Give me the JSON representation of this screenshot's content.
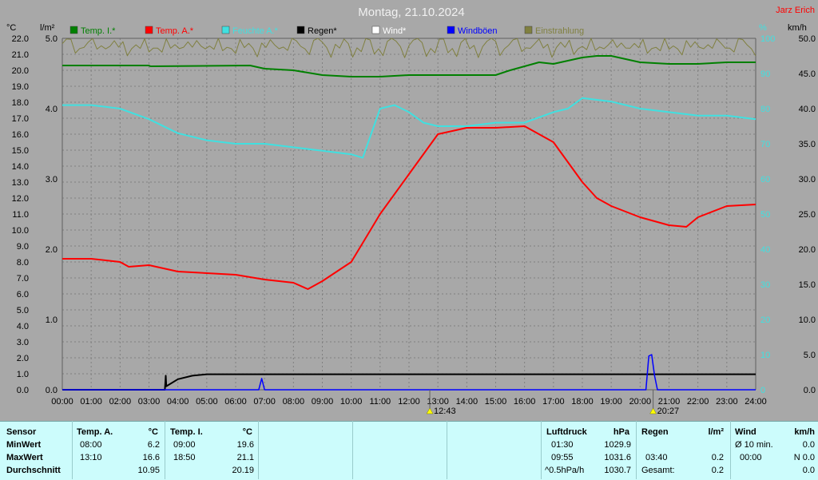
{
  "header": {
    "title": "Montag, 21.10.2024",
    "brand": "Jarz Erich",
    "unit_left_temp": "°C",
    "unit_left_rain": "l/m²",
    "unit_right_pct": "%",
    "unit_right_kmh": "km/h"
  },
  "legend": [
    {
      "label": "Temp. I.*",
      "color": "#008000"
    },
    {
      "label": "Temp. A.*",
      "color": "#ff0000"
    },
    {
      "label": "Feuchte A.*",
      "color": "#40e0e0"
    },
    {
      "label": "Regen*",
      "color": "#000000"
    },
    {
      "label": "Wind*",
      "color": "#ffffff"
    },
    {
      "label": "Windböen",
      "color": "#0000ff"
    },
    {
      "label": "Einstrahlung",
      "color": "#808040"
    }
  ],
  "chart_data": {
    "type": "line",
    "title": "Montag, 21.10.2024",
    "x_ticks": [
      "00:00",
      "01:00",
      "02:00",
      "03:00",
      "04:00",
      "05:00",
      "06:00",
      "07:00",
      "08:00",
      "09:00",
      "10:00",
      "11:00",
      "12:00",
      "13:00",
      "14:00",
      "15:00",
      "16:00",
      "17:00",
      "18:00",
      "19:00",
      "20:00",
      "21:00",
      "22:00",
      "23:00",
      "24:00"
    ],
    "temp_axis": {
      "min": 0.0,
      "max": 22.0,
      "ticks": [
        "0.0",
        "1.0",
        "2.0",
        "3.0",
        "4.0",
        "5.0",
        "6.0",
        "7.0",
        "8.0",
        "9.0",
        "10.0",
        "11.0",
        "12.0",
        "13.0",
        "14.0",
        "15.0",
        "16.0",
        "17.0",
        "18.0",
        "19.0",
        "20.0",
        "21.0",
        "22.0"
      ]
    },
    "rain_axis": {
      "min": 0.0,
      "max": 5.0,
      "ticks": [
        "0.0",
        "1.0",
        "2.0",
        "3.0",
        "4.0",
        "5.0"
      ]
    },
    "pct_axis": {
      "min": 0,
      "max": 100,
      "ticks": [
        "0",
        "10",
        "20",
        "30",
        "40",
        "50",
        "60",
        "70",
        "80",
        "90",
        "100"
      ]
    },
    "kmh_axis": {
      "min": 0.0,
      "max": 50.0,
      "ticks": [
        "0.0",
        "5.0",
        "10.0",
        "15.0",
        "20.0",
        "25.0",
        "30.0",
        "35.0",
        "40.0",
        "45.0",
        "50.0"
      ]
    },
    "sun_markers": [
      {
        "hour": 12.72,
        "label": "12:43"
      },
      {
        "hour": 20.45,
        "label": "20:27"
      }
    ],
    "series": [
      {
        "name": "Temp. I.*",
        "axis": "temp",
        "color": "#008000",
        "x": [
          0,
          3,
          3.05,
          6.5,
          7,
          8,
          9,
          10,
          11,
          12,
          13,
          14,
          15,
          15.5,
          16.5,
          17,
          18,
          18.5,
          19,
          20,
          21,
          22,
          23,
          23.5,
          24
        ],
        "y": [
          20.3,
          20.3,
          20.25,
          20.3,
          20.1,
          20.0,
          19.7,
          19.6,
          19.6,
          19.7,
          19.7,
          19.7,
          19.7,
          20.0,
          20.5,
          20.4,
          20.8,
          20.9,
          20.9,
          20.5,
          20.4,
          20.4,
          20.5,
          20.5,
          20.5
        ]
      },
      {
        "name": "Temp. A.*",
        "axis": "temp",
        "color": "#ff0000",
        "x": [
          0,
          1,
          2,
          2.3,
          3,
          3.5,
          4,
          5,
          6,
          7,
          8,
          8.5,
          9,
          10,
          10.5,
          11,
          12,
          13,
          14,
          15,
          16,
          17,
          18,
          18.5,
          19,
          20,
          21,
          21.6,
          22,
          23,
          24
        ],
        "y": [
          8.2,
          8.2,
          8.0,
          7.7,
          7.8,
          7.6,
          7.4,
          7.3,
          7.2,
          6.9,
          6.7,
          6.3,
          6.8,
          8.0,
          9.5,
          11.0,
          13.5,
          16.0,
          16.4,
          16.4,
          16.5,
          15.5,
          13.0,
          12.0,
          11.5,
          10.8,
          10.3,
          10.2,
          10.8,
          11.5,
          11.6
        ]
      },
      {
        "name": "Feuchte A.*",
        "axis": "pct",
        "color": "#40e0e0",
        "x": [
          0,
          1,
          2,
          3,
          4,
          5,
          6,
          7,
          8,
          9,
          10,
          10.4,
          11,
          11.5,
          12,
          12.5,
          13,
          14,
          15,
          16,
          17,
          17.5,
          18,
          19,
          20,
          21,
          22,
          23,
          24
        ],
        "y": [
          81,
          81,
          80,
          77,
          73,
          71,
          70,
          70,
          69,
          68,
          67,
          66,
          80,
          81,
          79,
          76,
          75,
          75,
          76,
          76,
          79,
          80,
          83,
          82,
          80,
          79,
          78,
          78,
          77
        ]
      },
      {
        "name": "Regen*",
        "axis": "rain",
        "color": "#000000",
        "x": [
          0,
          3.55,
          3.58,
          3.6,
          4,
          4.5,
          5,
          24
        ],
        "y": [
          0,
          0,
          0.2,
          0.05,
          0.15,
          0.2,
          0.22,
          0.22
        ]
      },
      {
        "name": "Windböen",
        "axis": "kmh",
        "color": "#0000ff",
        "x": [
          0,
          6.8,
          6.9,
          7.0,
          20.2,
          20.3,
          20.4,
          20.5,
          20.6,
          24
        ],
        "y": [
          0,
          0,
          1.6,
          0,
          0,
          4.8,
          5.0,
          2.0,
          0,
          0
        ]
      },
      {
        "name": "Einstrahlung",
        "axis": "pct",
        "color": "#808040",
        "x": [
          0,
          24
        ],
        "y": [
          99,
          99
        ]
      }
    ]
  },
  "table": {
    "sensor": {
      "header": "Sensor",
      "rows": [
        "MinWert",
        "MaxWert",
        "Durchschnitt"
      ]
    },
    "temp_a": {
      "header": "Temp. A.",
      "unit": "°C",
      "rows": [
        {
          "time": "08:00",
          "value": "6.2"
        },
        {
          "time": "13:10",
          "value": "16.6"
        },
        {
          "time": "",
          "value": "10.95"
        }
      ]
    },
    "temp_i": {
      "header": "Temp. I.",
      "unit": "°C",
      "rows": [
        {
          "time": "09:00",
          "value": "19.6"
        },
        {
          "time": "18:50",
          "value": "21.1"
        },
        {
          "time": "",
          "value": "20.19"
        }
      ]
    },
    "luftdruck": {
      "header": "Luftdruck",
      "unit": "hPa",
      "rows": [
        {
          "time": "01:30",
          "value": "1029.9"
        },
        {
          "time": "09:55",
          "value": "1031.6"
        },
        {
          "time": "^0.5hPa/h",
          "value": "1030.7"
        }
      ]
    },
    "regen": {
      "header": "Regen",
      "unit": "l/m²",
      "rows": [
        {
          "time": "",
          "value": ""
        },
        {
          "time": "03:40",
          "value": "0.2"
        },
        {
          "time": "Gesamt:",
          "value": "0.2"
        }
      ]
    },
    "wind": {
      "header": "Wind",
      "unit": "km/h",
      "rows": [
        {
          "time": "Ø 10 min.",
          "value": "0.0"
        },
        {
          "time": "00:00",
          "value": "N 0.0"
        },
        {
          "time": "",
          "value": "0.0"
        }
      ]
    }
  }
}
